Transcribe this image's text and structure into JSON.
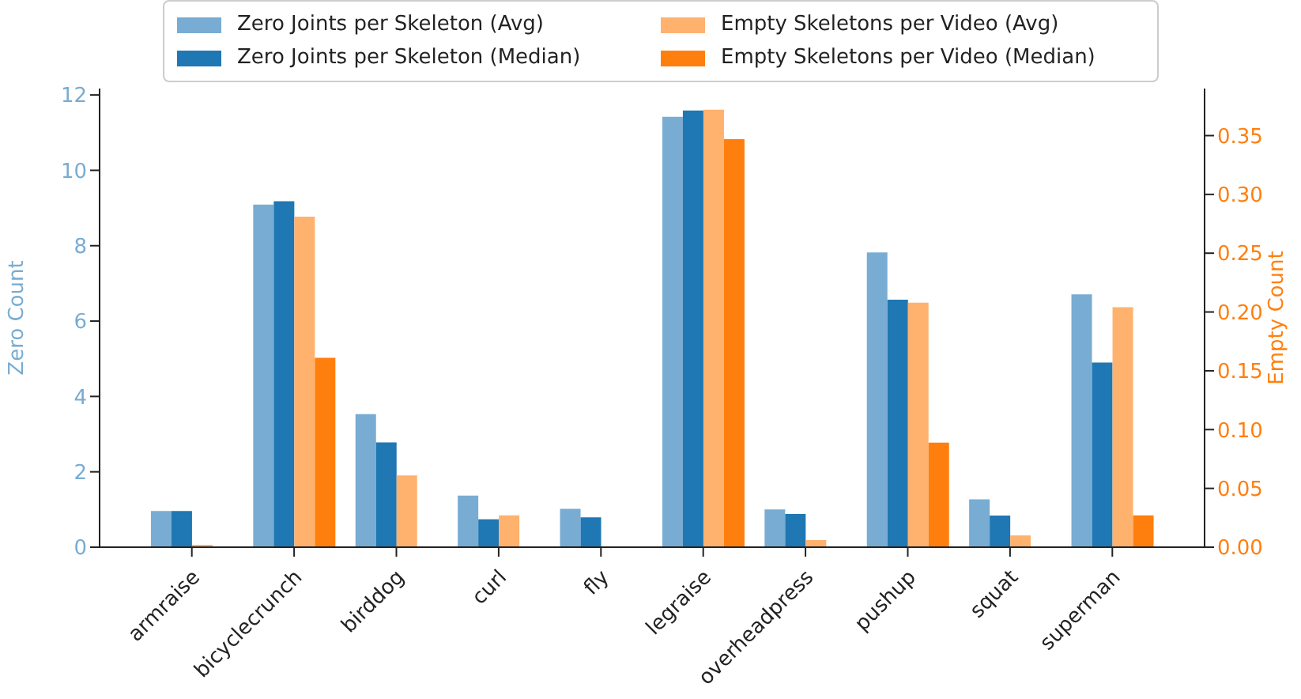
{
  "chart_data": {
    "type": "bar",
    "xlabel": null,
    "ylabel": "Zero Count",
    "y2label": "Empty Count",
    "categories": [
      "armraise",
      "bicyclecrunch",
      "birddog",
      "curl",
      "fly",
      "legraise",
      "overheadpress",
      "pushup",
      "squat",
      "superman"
    ],
    "series": [
      {
        "name": "Zero Joints per Skeleton (Avg)",
        "color": "#78acd2",
        "values": [
          0.96,
          9.09,
          3.53,
          1.37,
          1.02,
          11.42,
          1.0,
          7.82,
          1.27,
          6.71
        ]
      },
      {
        "name": "Zero Joints per Skeleton (Median)",
        "color": "#1f77b4",
        "values": [
          0.96,
          9.18,
          2.78,
          0.74,
          0.79,
          11.59,
          0.88,
          6.57,
          0.84,
          4.9
        ]
      },
      {
        "name": "Empty Skeletons per Video (Avg)",
        "color": "#ffb26e",
        "axis": "y2",
        "values": [
          0.002,
          0.281,
          0.061,
          0.027,
          0,
          0.372,
          0.006,
          0.208,
          0.01,
          0.204
        ]
      },
      {
        "name": "Empty Skeletons per Video (Median)",
        "color": "#ff7f0e",
        "axis": "y2",
        "values": [
          0,
          0.161,
          0,
          0,
          0,
          0.347,
          0,
          0.089,
          0,
          0.027
        ]
      }
    ],
    "ylim": [
      0,
      12.17
    ],
    "yticks": [
      0,
      2,
      4,
      6,
      8,
      10,
      12
    ],
    "y2lim": [
      0,
      0.39
    ],
    "y2ticks": [
      {
        "value": 0,
        "label": "0.00"
      },
      {
        "value": 0.05,
        "label": "0.05"
      },
      {
        "value": 0.1,
        "label": "0.10"
      },
      {
        "value": 0.15,
        "label": "0.15"
      },
      {
        "value": 0.2,
        "label": "0.20"
      },
      {
        "value": 0.25,
        "label": "0.25"
      },
      {
        "value": 0.3,
        "label": "0.30"
      },
      {
        "value": 0.35,
        "label": "0.35"
      }
    ],
    "grid": false,
    "legend": "top"
  }
}
